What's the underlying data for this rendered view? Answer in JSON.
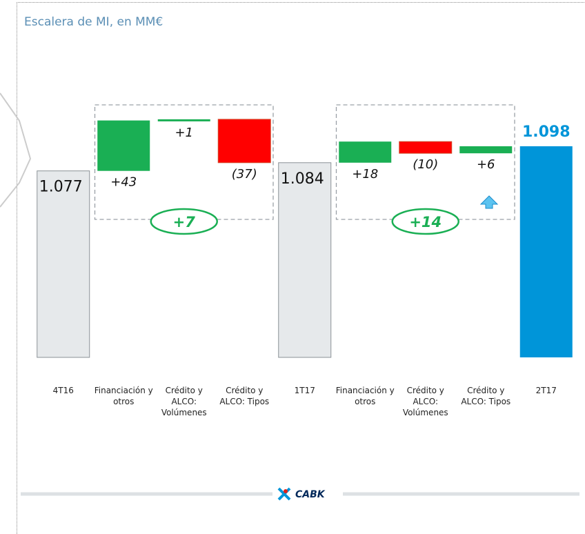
{
  "chart_data": {
    "type": "waterfall",
    "title": "Escalera de MI, en MM€",
    "categories": [
      "4T16",
      "Financiación y otros",
      "Crédito y ALCO: Volúmenes",
      "Crédito y ALCO: Tipos",
      "1T17",
      "Financiación y otros",
      "Crédito y ALCO: Volúmenes",
      "Crédito y ALCO: Tipos",
      "2T17"
    ],
    "measure": [
      "total",
      "relative",
      "relative",
      "relative",
      "total",
      "relative",
      "relative",
      "relative",
      "total"
    ],
    "values": [
      1077,
      43,
      1,
      -37,
      1084,
      18,
      -10,
      6,
      1098
    ],
    "value_labels": [
      "1.077",
      "+43",
      "+1",
      "(37)",
      "1.084",
      "+18",
      "(10)",
      "+6",
      "1.098"
    ],
    "colors": [
      "#e6e9eb",
      "#1aaf54",
      "#1aaf54",
      "#ff0000",
      "#e6e9eb",
      "#1aaf54",
      "#ff0000",
      "#1aaf54",
      "#0095d9"
    ],
    "ylim": [
      918,
      1120
    ],
    "groups": [
      {
        "start": 1,
        "end": 3,
        "value": 7,
        "label": "+7"
      },
      {
        "start": 5,
        "end": 7,
        "value": 14,
        "label": "+14"
      }
    ],
    "footer": "CABK"
  }
}
